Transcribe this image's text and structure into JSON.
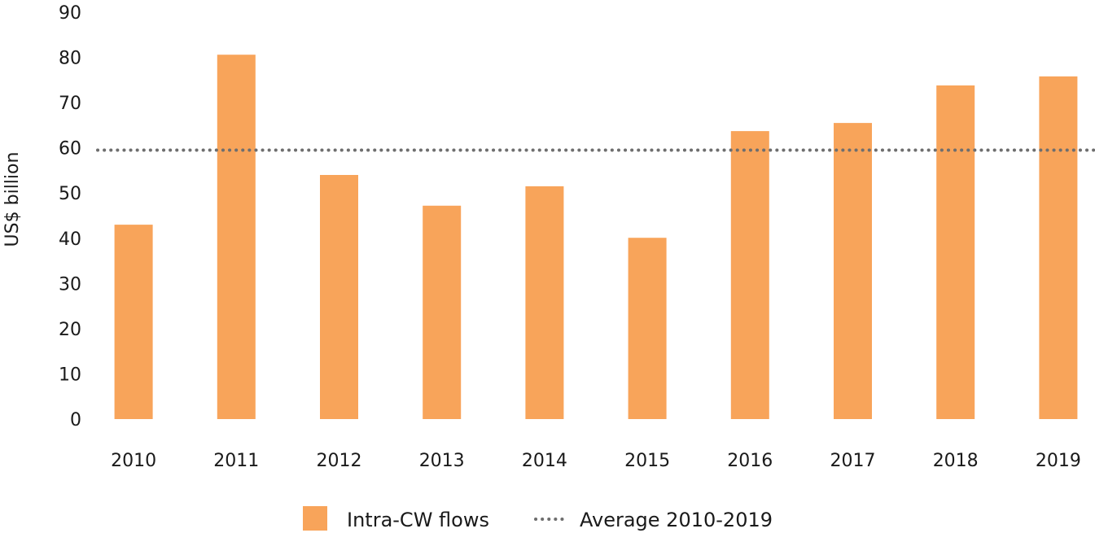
{
  "chart_data": {
    "type": "bar",
    "categories": [
      "2010",
      "2011",
      "2012",
      "2013",
      "2014",
      "2015",
      "2016",
      "2017",
      "2018",
      "2019"
    ],
    "series": [
      {
        "name": "Intra-CW flows",
        "values": [
          43,
          80.6,
          54,
          47.2,
          51.5,
          40.1,
          63.7,
          65.5,
          73.8,
          75.8
        ]
      }
    ],
    "average": {
      "name": "Average 2010-2019",
      "value": 59.5
    },
    "ylabel": "US$ billion",
    "ylim": [
      0,
      90
    ],
    "yticks": [
      "0",
      "10",
      "20",
      "30",
      "40",
      "50",
      "60",
      "70",
      "80",
      "90"
    ],
    "grid": false,
    "legend_position": "bottom-center"
  },
  "colors": {
    "bar": "#f8a45a",
    "average_line": "#6e6e6e",
    "text": "#1a1a1a"
  }
}
